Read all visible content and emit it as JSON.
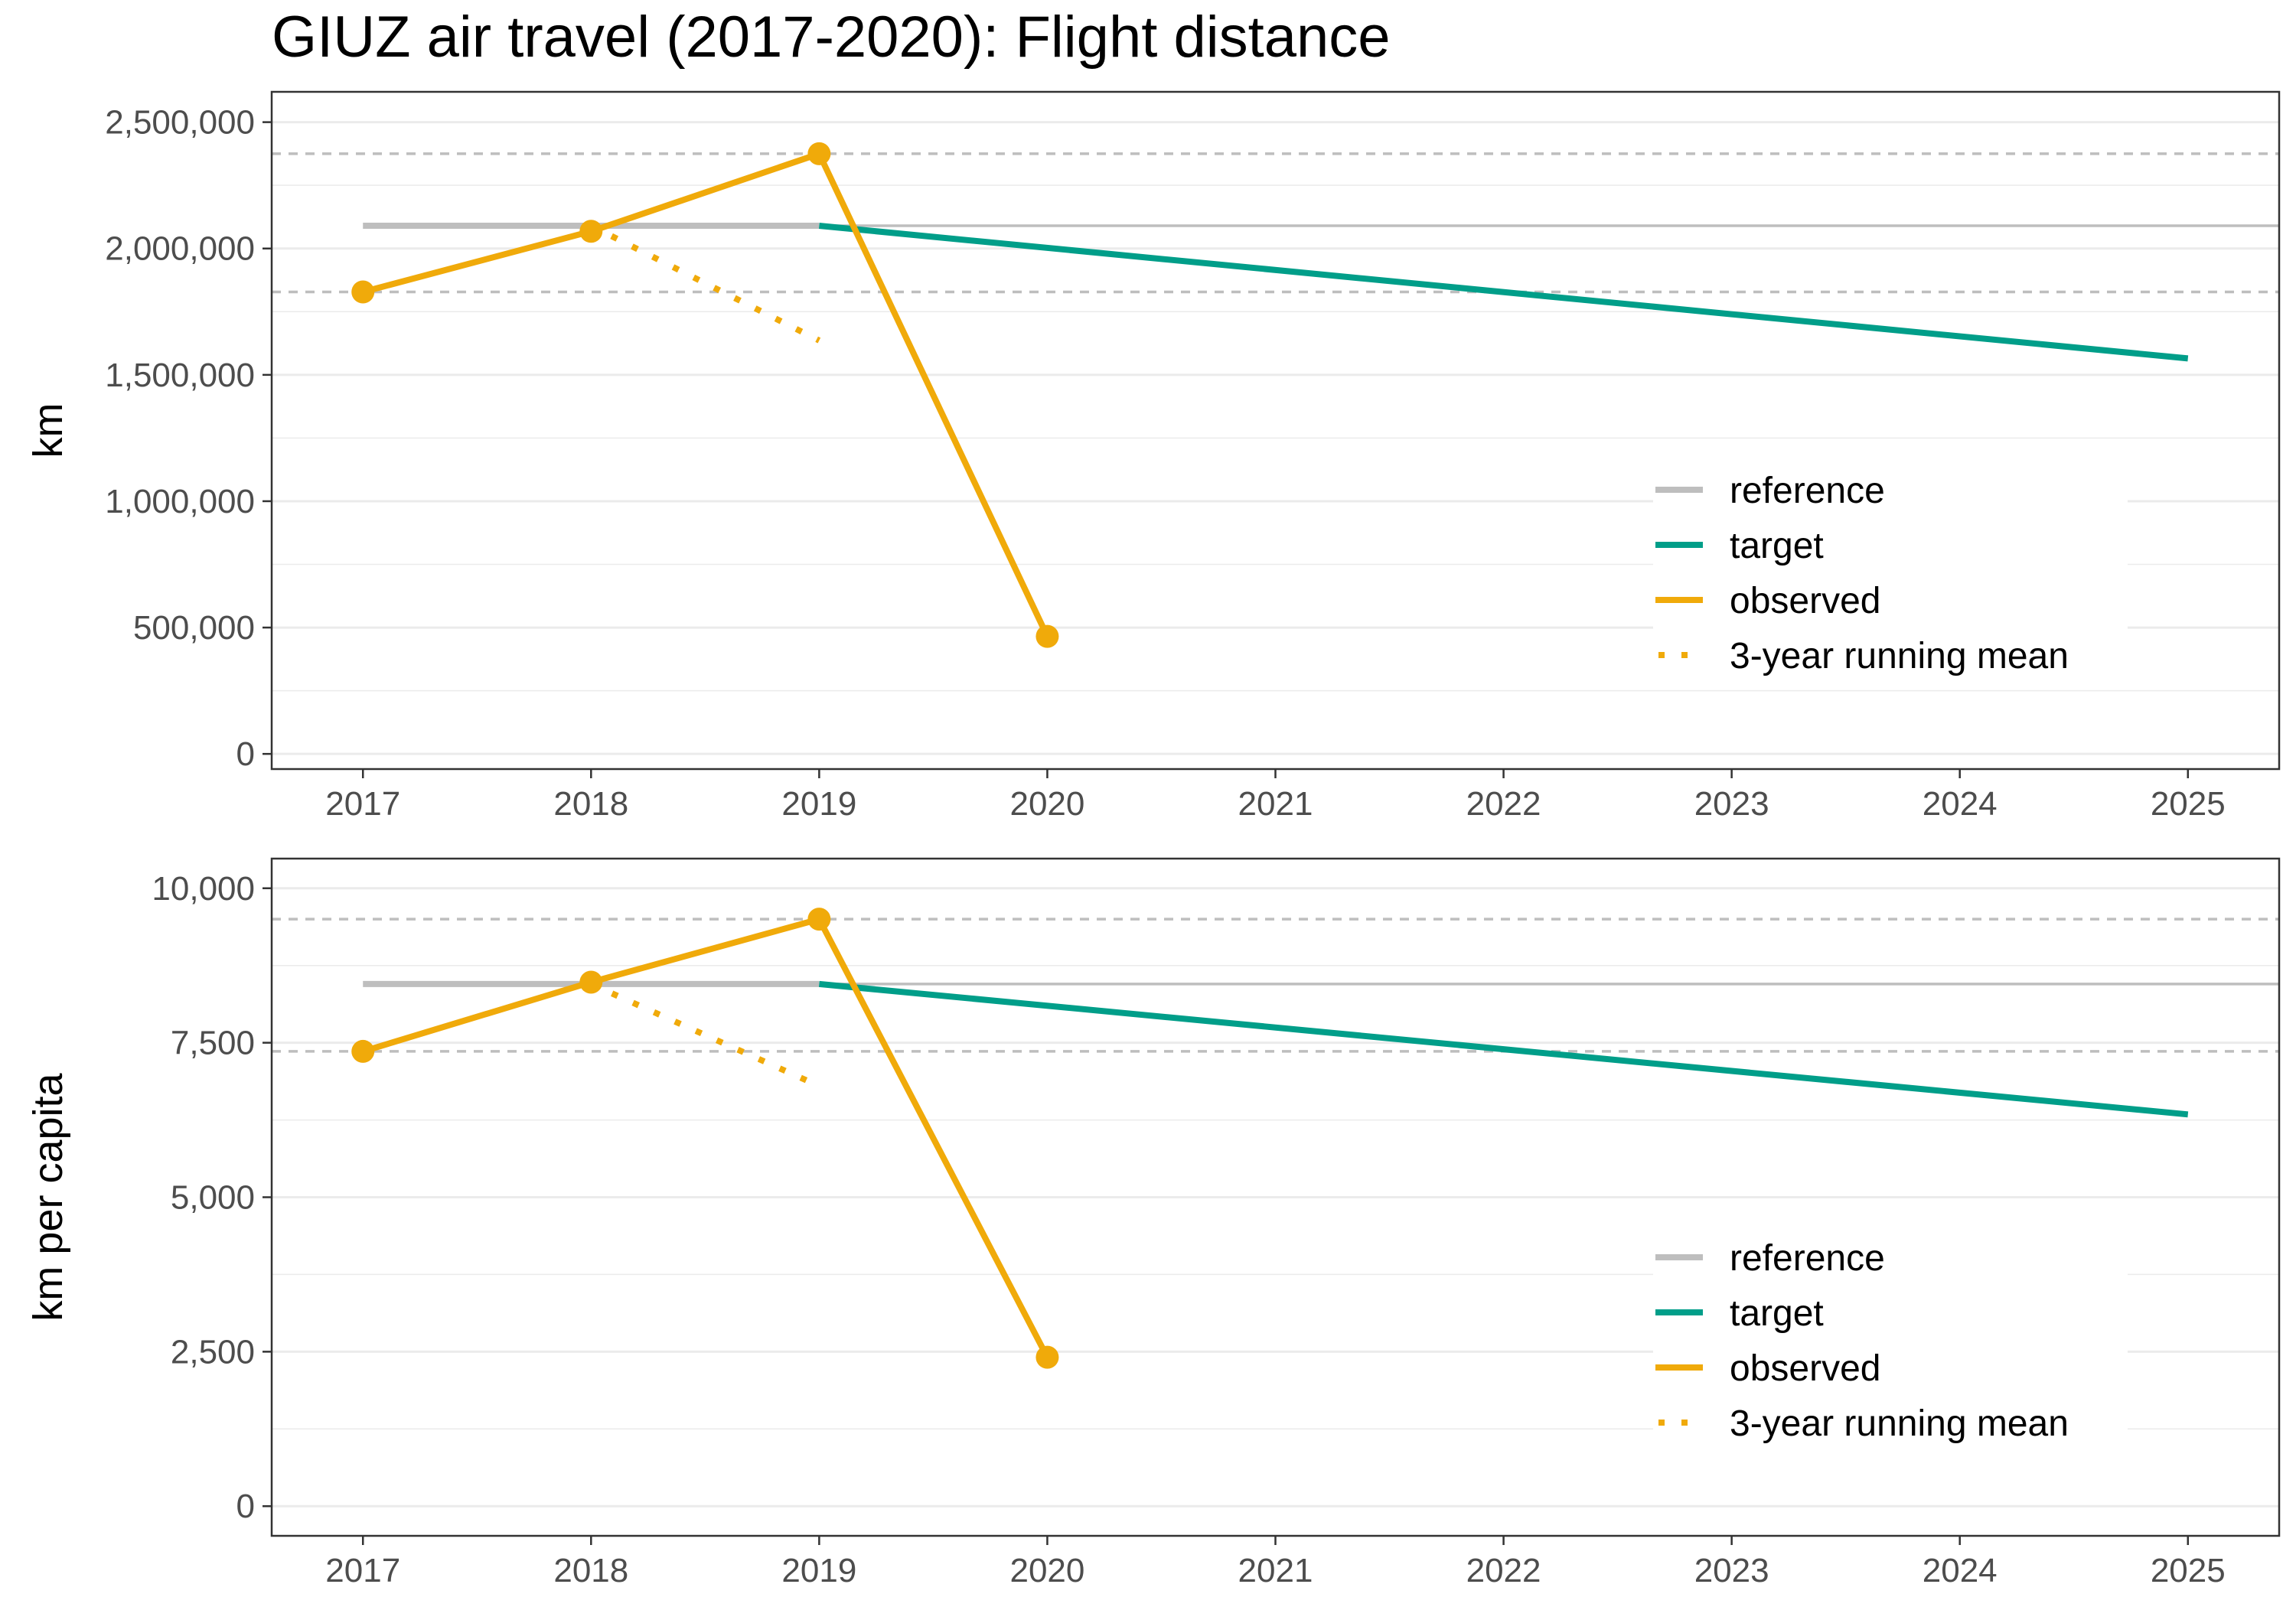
{
  "title": "GIUZ air travel (2017-2020): Flight distance",
  "legend_labels": [
    "reference",
    "target",
    "observed",
    "3-year running mean"
  ],
  "colors": {
    "reference": "#bebebe",
    "target": "#009e89",
    "observed": "#f0aa0a",
    "running_mean": "#f0aa0a",
    "grid": "#ebebeb",
    "panel_border": "#333333"
  },
  "chart_data": [
    {
      "type": "line",
      "title": "GIUZ air travel (2017-2020): Flight distance",
      "xlabel": "",
      "ylabel": "km",
      "xlim": [
        2016.6,
        2025.4
      ],
      "ylim": [
        -60000,
        2620000
      ],
      "x_ticks": [
        2017,
        2018,
        2019,
        2020,
        2021,
        2022,
        2023,
        2024,
        2025
      ],
      "x_tick_labels": [
        "2017",
        "2018",
        "2019",
        "2020",
        "2021",
        "2022",
        "2023",
        "2024",
        "2025"
      ],
      "y_ticks": [
        0,
        500000,
        1000000,
        1500000,
        2000000,
        2500000
      ],
      "y_tick_labels": [
        "0",
        "500,000",
        "1,000,000",
        "1,500,000",
        "2,000,000",
        "2,500,000"
      ],
      "grid": true,
      "legend_position": "bottom-right",
      "series": [
        {
          "name": "reference",
          "style": "solid",
          "x": [
            2017,
            2019
          ],
          "y": [
            2090000,
            2090000
          ]
        },
        {
          "name": "reference",
          "style": "solid-extension",
          "x": [
            2019,
            2025.4
          ],
          "y": [
            2090000,
            2090000
          ]
        },
        {
          "name": "reference",
          "style": "dashed",
          "x": [
            2016.6,
            2025.4
          ],
          "y": [
            2375000,
            2375000
          ]
        },
        {
          "name": "reference",
          "style": "dashed",
          "x": [
            2016.6,
            2025.4
          ],
          "y": [
            1828000,
            1828000
          ]
        },
        {
          "name": "target",
          "style": "solid",
          "x": [
            2019,
            2025
          ],
          "y": [
            2090000,
            1565000
          ]
        },
        {
          "name": "observed",
          "style": "solid-points",
          "x": [
            2017,
            2018,
            2019,
            2020
          ],
          "y": [
            1828000,
            2068000,
            2375000,
            465000
          ]
        },
        {
          "name": "3-year running mean",
          "style": "dotted",
          "x": [
            2018,
            2019
          ],
          "y": [
            2090000,
            1636000
          ]
        }
      ]
    },
    {
      "type": "line",
      "xlabel": "",
      "ylabel": "km per capita",
      "xlim": [
        2016.6,
        2025.4
      ],
      "ylim": [
        -480,
        10480
      ],
      "x_ticks": [
        2017,
        2018,
        2019,
        2020,
        2021,
        2022,
        2023,
        2024,
        2025
      ],
      "x_tick_labels": [
        "2017",
        "2018",
        "2019",
        "2020",
        "2021",
        "2022",
        "2023",
        "2024",
        "2025"
      ],
      "y_ticks": [
        0,
        2500,
        5000,
        7500,
        10000
      ],
      "y_tick_labels": [
        "0",
        "2,500",
        "5,000",
        "7,500",
        "10,000"
      ],
      "grid": true,
      "legend_position": "bottom-right",
      "series": [
        {
          "name": "reference",
          "style": "solid",
          "x": [
            2017,
            2019
          ],
          "y": [
            8450,
            8450
          ]
        },
        {
          "name": "reference",
          "style": "solid-extension",
          "x": [
            2019,
            2025.4
          ],
          "y": [
            8450,
            8450
          ]
        },
        {
          "name": "reference",
          "style": "dashed",
          "x": [
            2016.6,
            2025.4
          ],
          "y": [
            9500,
            9500
          ]
        },
        {
          "name": "reference",
          "style": "dashed",
          "x": [
            2016.6,
            2025.4
          ],
          "y": [
            7360,
            7360
          ]
        },
        {
          "name": "target",
          "style": "solid",
          "x": [
            2019,
            2025
          ],
          "y": [
            8450,
            6340
          ]
        },
        {
          "name": "observed",
          "style": "solid-points",
          "x": [
            2017,
            2018,
            2019,
            2020
          ],
          "y": [
            7360,
            8480,
            9500,
            2410
          ]
        },
        {
          "name": "3-year running mean",
          "style": "dotted",
          "x": [
            2018,
            2019
          ],
          "y": [
            8450,
            6800
          ]
        }
      ]
    }
  ]
}
